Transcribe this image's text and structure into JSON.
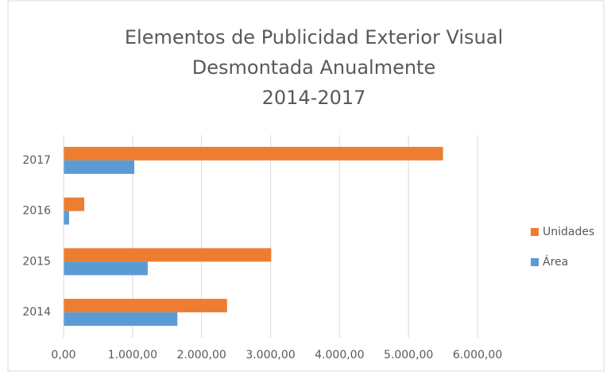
{
  "chart_data": {
    "type": "bar",
    "orientation": "horizontal",
    "title": [
      "Elementos de Publicidad Exterior Visual",
      "Desmontada Anualmente",
      "2014-2017"
    ],
    "categories": [
      "2014",
      "2015",
      "2016",
      "2017"
    ],
    "series": [
      {
        "name": "Unidades",
        "color": "#ed7d31",
        "values": [
          2370,
          3010,
          300,
          5500
        ]
      },
      {
        "name": "Área",
        "color": "#5b9bd5",
        "values": [
          1650,
          1220,
          80,
          1025
        ]
      }
    ],
    "xlim": [
      0,
      6000
    ],
    "xticks": [
      {
        "value": 0,
        "label": "0,00"
      },
      {
        "value": 1000,
        "label": "1.000,00"
      },
      {
        "value": 2000,
        "label": "2.000,00"
      },
      {
        "value": 3000,
        "label": "3.000,00"
      },
      {
        "value": 4000,
        "label": "4.000,00"
      },
      {
        "value": 5000,
        "label": "5.000,00"
      },
      {
        "value": 6000,
        "label": "6.000,00"
      }
    ],
    "grid": true,
    "legend": "right"
  }
}
